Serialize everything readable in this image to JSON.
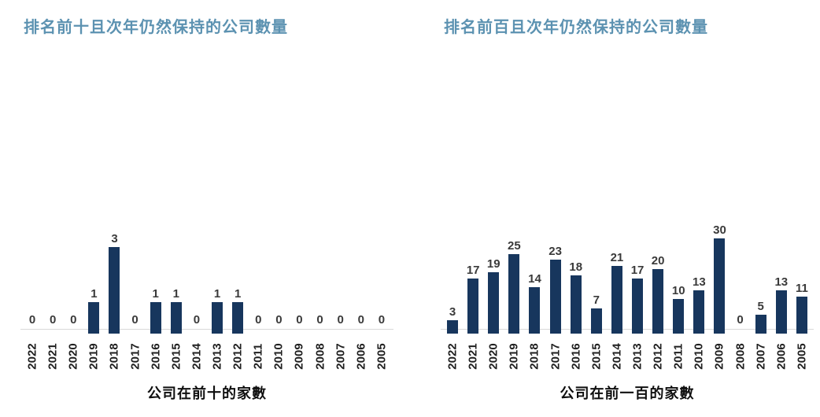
{
  "chart_data": [
    {
      "type": "bar",
      "title": "排名前十且次年仍然保持的公司數量",
      "xlabel": "公司在前十的家數",
      "ylabel": "",
      "categories": [
        "2022",
        "2021",
        "2020",
        "2019",
        "2018",
        "2017",
        "2016",
        "2015",
        "2014",
        "2013",
        "2012",
        "2011",
        "2010",
        "2009",
        "2008",
        "2007",
        "2006",
        "2005"
      ],
      "values": [
        0,
        0,
        0,
        1,
        3,
        0,
        1,
        1,
        0,
        1,
        1,
        0,
        0,
        0,
        0,
        0,
        0,
        0
      ],
      "ylim": [
        0,
        3.5
      ],
      "data_labels": true,
      "grid": false,
      "legend": false
    },
    {
      "type": "bar",
      "title": "排名前百且次年仍然保持的公司數量",
      "xlabel": "公司在前一百的家數",
      "ylabel": "",
      "categories": [
        "2022",
        "2021",
        "2020",
        "2019",
        "2018",
        "2017",
        "2016",
        "2015",
        "2014",
        "2013",
        "2012",
        "2011",
        "2010",
        "2009",
        "2008",
        "2007",
        "2006",
        "2005"
      ],
      "values": [
        3,
        17,
        19,
        25,
        14,
        23,
        18,
        7,
        21,
        17,
        20,
        10,
        13,
        30,
        0,
        5,
        13,
        11
      ],
      "ylim": [
        0,
        32
      ],
      "data_labels": true,
      "grid": false,
      "legend": false
    }
  ],
  "colors": {
    "title": "#5c92b1",
    "bar": "#17365d",
    "value_label": "#3a3a3a",
    "tick_label": "#1f1f1f",
    "axis_line": "#d9d9d9",
    "axis_title": "#0f0f0f"
  }
}
